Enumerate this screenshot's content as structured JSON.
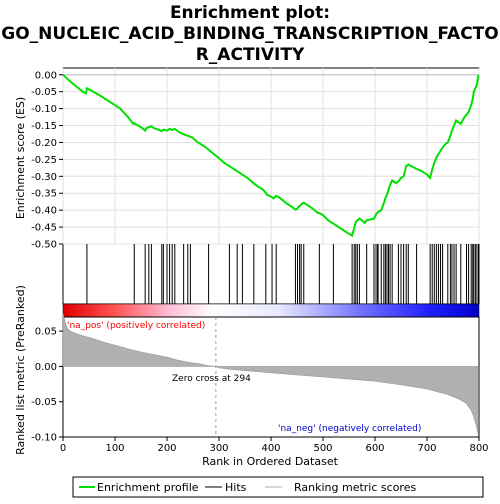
{
  "chart_data": {
    "type": "line",
    "title_lines": [
      "Enrichment plot:",
      "GO_NUCLEIC_ACID_BINDING_TRANSCRIPTION_FACTO",
      "R_ACTIVITY"
    ],
    "xlabel": "Rank in Ordered Dataset",
    "es_panel": {
      "ylabel": "Enrichment score (ES)",
      "ylim": [
        -0.5,
        0.02
      ],
      "yticks": [
        0.0,
        -0.05,
        -0.1,
        -0.15,
        -0.2,
        -0.25,
        -0.3,
        -0.35,
        -0.4,
        -0.45,
        -0.5
      ],
      "ytick_labels": [
        "0.00",
        "-0.05",
        "-0.10",
        "-0.15",
        "-0.20",
        "-0.25",
        "-0.30",
        "-0.35",
        "-0.40",
        "-0.45",
        "-0.50"
      ],
      "color": "#00e000",
      "points": [
        [
          0,
          0.0
        ],
        [
          12,
          -0.017
        ],
        [
          24,
          -0.033
        ],
        [
          38,
          -0.05
        ],
        [
          44,
          -0.055
        ],
        [
          46,
          -0.04
        ],
        [
          55,
          -0.047
        ],
        [
          70,
          -0.06
        ],
        [
          90,
          -0.08
        ],
        [
          110,
          -0.1
        ],
        [
          125,
          -0.125
        ],
        [
          135,
          -0.145
        ],
        [
          137,
          -0.143
        ],
        [
          150,
          -0.155
        ],
        [
          158,
          -0.165
        ],
        [
          160,
          -0.158
        ],
        [
          165,
          -0.155
        ],
        [
          170,
          -0.152
        ],
        [
          175,
          -0.158
        ],
        [
          185,
          -0.163
        ],
        [
          190,
          -0.167
        ],
        [
          193,
          -0.162
        ],
        [
          200,
          -0.165
        ],
        [
          205,
          -0.16
        ],
        [
          210,
          -0.163
        ],
        [
          215,
          -0.16
        ],
        [
          222,
          -0.168
        ],
        [
          230,
          -0.175
        ],
        [
          240,
          -0.18
        ],
        [
          248,
          -0.185
        ],
        [
          260,
          -0.2
        ],
        [
          275,
          -0.215
        ],
        [
          285,
          -0.228
        ],
        [
          295,
          -0.24
        ],
        [
          310,
          -0.26
        ],
        [
          325,
          -0.275
        ],
        [
          340,
          -0.29
        ],
        [
          355,
          -0.305
        ],
        [
          370,
          -0.325
        ],
        [
          385,
          -0.34
        ],
        [
          393,
          -0.355
        ],
        [
          400,
          -0.36
        ],
        [
          405,
          -0.365
        ],
        [
          410,
          -0.358
        ],
        [
          418,
          -0.365
        ],
        [
          430,
          -0.38
        ],
        [
          440,
          -0.39
        ],
        [
          447,
          -0.398
        ],
        [
          450,
          -0.397
        ],
        [
          453,
          -0.39
        ],
        [
          457,
          -0.385
        ],
        [
          460,
          -0.38
        ],
        [
          463,
          -0.378
        ],
        [
          470,
          -0.385
        ],
        [
          480,
          -0.395
        ],
        [
          490,
          -0.408
        ],
        [
          495,
          -0.41
        ],
        [
          500,
          -0.415
        ],
        [
          510,
          -0.43
        ],
        [
          520,
          -0.44
        ],
        [
          530,
          -0.45
        ],
        [
          540,
          -0.46
        ],
        [
          550,
          -0.47
        ],
        [
          556,
          -0.475
        ],
        [
          560,
          -0.453
        ],
        [
          563,
          -0.435
        ],
        [
          566,
          -0.43
        ],
        [
          570,
          -0.425
        ],
        [
          575,
          -0.43
        ],
        [
          580,
          -0.438
        ],
        [
          584,
          -0.43
        ],
        [
          590,
          -0.428
        ],
        [
          598,
          -0.425
        ],
        [
          603,
          -0.41
        ],
        [
          606,
          -0.405
        ],
        [
          612,
          -0.4
        ],
        [
          617,
          -0.38
        ],
        [
          620,
          -0.365
        ],
        [
          623,
          -0.355
        ],
        [
          626,
          -0.34
        ],
        [
          629,
          -0.325
        ],
        [
          633,
          -0.312
        ],
        [
          640,
          -0.32
        ],
        [
          645,
          -0.315
        ],
        [
          650,
          -0.305
        ],
        [
          655,
          -0.3
        ],
        [
          660,
          -0.27
        ],
        [
          664,
          -0.265
        ],
        [
          670,
          -0.27
        ],
        [
          680,
          -0.278
        ],
        [
          690,
          -0.285
        ],
        [
          700,
          -0.295
        ],
        [
          706,
          -0.305
        ],
        [
          710,
          -0.28
        ],
        [
          714,
          -0.26
        ],
        [
          718,
          -0.245
        ],
        [
          722,
          -0.235
        ],
        [
          726,
          -0.225
        ],
        [
          730,
          -0.215
        ],
        [
          735,
          -0.205
        ],
        [
          740,
          -0.2
        ],
        [
          745,
          -0.18
        ],
        [
          748,
          -0.165
        ],
        [
          752,
          -0.15
        ],
        [
          756,
          -0.135
        ],
        [
          760,
          -0.14
        ],
        [
          765,
          -0.145
        ],
        [
          772,
          -0.125
        ],
        [
          776,
          -0.118
        ],
        [
          780,
          -0.11
        ],
        [
          785,
          -0.09
        ],
        [
          788,
          -0.07
        ],
        [
          790,
          -0.05
        ],
        [
          793,
          -0.04
        ],
        [
          796,
          -0.03
        ],
        [
          799,
          0.0
        ]
      ]
    },
    "hits": [
      46,
      137,
      158,
      165,
      170,
      190,
      193,
      200,
      205,
      210,
      215,
      232,
      240,
      245,
      280,
      320,
      335,
      345,
      367,
      390,
      402,
      410,
      447,
      451,
      455,
      458,
      463,
      493,
      520,
      556,
      560,
      563,
      566,
      570,
      584,
      598,
      602,
      605,
      606,
      612,
      617,
      620,
      623,
      626,
      629,
      633,
      645,
      650,
      655,
      660,
      664,
      680,
      706,
      710,
      714,
      718,
      722,
      726,
      730,
      740,
      745,
      748,
      752,
      756,
      765,
      776,
      780,
      785,
      788,
      790,
      793,
      796,
      799
    ],
    "metric_panel": {
      "ylabel": "Ranked list metric (PreRanked)",
      "ylim": [
        -0.1,
        0.07
      ],
      "yticks": [
        0.05,
        0.0,
        -0.05,
        -0.1
      ],
      "ytick_labels": [
        "0.05",
        "0.00",
        "-0.05",
        "-0.10"
      ],
      "color": "#b0b0b0",
      "profile": [
        [
          0,
          0.075
        ],
        [
          3,
          0.066
        ],
        [
          7,
          0.056
        ],
        [
          12,
          0.051
        ],
        [
          20,
          0.048
        ],
        [
          40,
          0.043
        ],
        [
          60,
          0.039
        ],
        [
          80,
          0.034
        ],
        [
          100,
          0.03
        ],
        [
          120,
          0.026
        ],
        [
          140,
          0.022
        ],
        [
          160,
          0.019
        ],
        [
          180,
          0.016
        ],
        [
          200,
          0.013
        ],
        [
          220,
          0.009
        ],
        [
          240,
          0.006
        ],
        [
          260,
          0.004
        ],
        [
          280,
          0.001
        ],
        [
          294,
          0.0
        ],
        [
          300,
          -0.002
        ],
        [
          320,
          -0.004
        ],
        [
          350,
          -0.006
        ],
        [
          400,
          -0.009
        ],
        [
          450,
          -0.012
        ],
        [
          500,
          -0.015
        ],
        [
          550,
          -0.018
        ],
        [
          600,
          -0.021
        ],
        [
          650,
          -0.026
        ],
        [
          700,
          -0.032
        ],
        [
          720,
          -0.036
        ],
        [
          740,
          -0.04
        ],
        [
          760,
          -0.046
        ],
        [
          775,
          -0.052
        ],
        [
          785,
          -0.062
        ],
        [
          790,
          -0.072
        ],
        [
          795,
          -0.085
        ],
        [
          799,
          -0.098
        ]
      ],
      "zero_cross_label": "Zero cross at 294",
      "zero_cross_rank": 294,
      "pos_label": "'na_pos' (positively correlated)",
      "neg_label": "'na_neg' (negatively correlated)"
    },
    "xlim": [
      0,
      800
    ],
    "xticks": [
      0,
      100,
      200,
      300,
      400,
      500,
      600,
      700,
      800
    ],
    "xtick_labels": [
      "0",
      "100",
      "200",
      "300",
      "400",
      "500",
      "600",
      "700",
      "800"
    ],
    "legend": {
      "entries": [
        {
          "label": "Enrichment profile",
          "color": "#00e000"
        },
        {
          "label": "Hits",
          "color": "#000000"
        },
        {
          "label": "Ranking metric scores",
          "color": "#b0b0b0"
        }
      ]
    },
    "colors": {
      "pos": "#ff0000",
      "neg": "#0000ff",
      "pos_text": "#ff0000",
      "neg_text": "#0000cc"
    }
  }
}
